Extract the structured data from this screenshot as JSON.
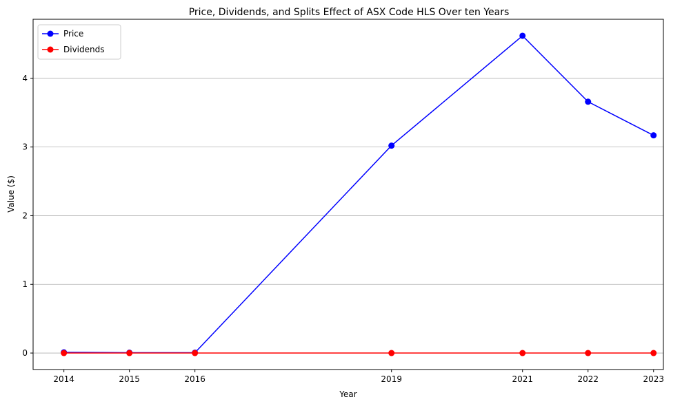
{
  "chart_data": {
    "type": "line",
    "title": "Price, Dividends, and Splits Effect of ASX Code HLS Over ten Years",
    "xlabel": "Year",
    "ylabel": "Value ($)",
    "x": [
      2014,
      2015,
      2016,
      2019,
      2021,
      2022,
      2023
    ],
    "x_ticks": [
      "2014",
      "2015",
      "2016",
      "2019",
      "2021",
      "2022",
      "2023"
    ],
    "y_ticks": [
      "0",
      "1",
      "2",
      "3",
      "4"
    ],
    "xlim": [
      2013.53,
      2023.15
    ],
    "ylim": [
      -0.24,
      4.86
    ],
    "grid": "horizontal",
    "legend_position": "top-left",
    "series": [
      {
        "name": "Price",
        "color": "#0000ff",
        "values": [
          0.01,
          0.005,
          0.005,
          3.02,
          4.62,
          3.66,
          3.17
        ]
      },
      {
        "name": "Dividends",
        "color": "#ff0000",
        "values": [
          0,
          0,
          0,
          0,
          0,
          0,
          0
        ]
      }
    ]
  }
}
